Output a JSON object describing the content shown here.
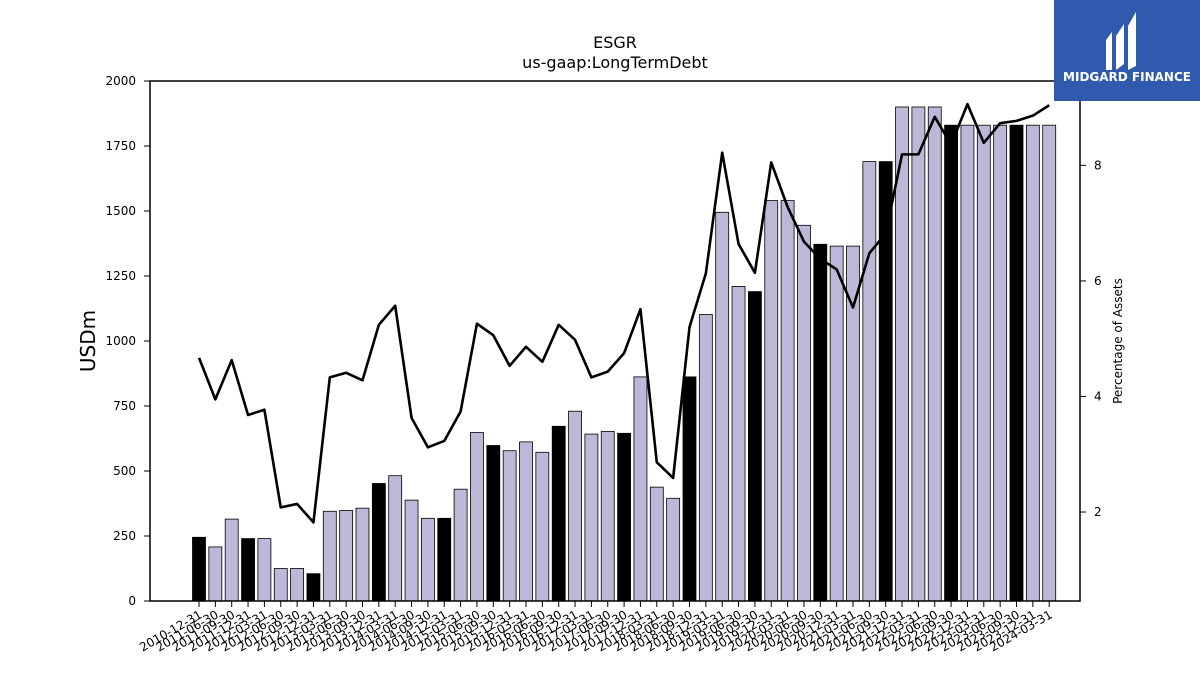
{
  "colors": {
    "bar_highlight": "#000000",
    "bar_normal": "#bcb8d8",
    "bar_edge": "#000000",
    "line": "#000000",
    "logo_bg": "#2f5aad"
  },
  "logo": {
    "text": "MIDGARD FINANCE",
    "icon": "midgard-logo-icon"
  },
  "chart_data": {
    "type": "bar",
    "title": "ESGR",
    "subtitle": "us-gaap:LongTermDebt",
    "ylabel": "USDm",
    "y2label": "Percentage of Assets",
    "ylim": [
      0,
      2000
    ],
    "y2lim": [
      0.46,
      9.46
    ],
    "yticks": [
      0,
      250,
      500,
      750,
      1000,
      1250,
      1500,
      1750,
      2000
    ],
    "y2ticks": [
      2,
      4,
      6,
      8
    ],
    "grid": false,
    "categories": [
      "2010-12-31",
      "2011-06-30",
      "2011-09-30",
      "2011-12-31",
      "2012-03-31",
      "2012-06-30",
      "2012-09-30",
      "2012-12-31",
      "2013-03-31",
      "2013-06-30",
      "2013-09-30",
      "2013-12-31",
      "2014-03-31",
      "2014-06-30",
      "2014-09-30",
      "2014-12-31",
      "2015-03-31",
      "2015-06-30",
      "2015-09-30",
      "2015-12-31",
      "2016-03-31",
      "2016-06-30",
      "2016-09-30",
      "2016-12-31",
      "2017-03-31",
      "2017-06-30",
      "2017-09-30",
      "2017-12-31",
      "2018-03-31",
      "2018-06-30",
      "2018-09-30",
      "2018-12-31",
      "2019-03-31",
      "2019-06-30",
      "2019-09-30",
      "2019-12-31",
      "2020-03-31",
      "2020-06-30",
      "2020-09-30",
      "2020-12-31",
      "2021-03-31",
      "2021-06-30",
      "2021-09-30",
      "2021-12-31",
      "2022-03-31",
      "2022-06-30",
      "2022-09-30",
      "2022-12-31",
      "2023-03-31",
      "2023-06-30",
      "2023-09-30",
      "2023-12-31",
      "2024-03-31"
    ],
    "highlight": [
      true,
      false,
      false,
      true,
      false,
      false,
      false,
      true,
      false,
      false,
      false,
      true,
      false,
      false,
      false,
      true,
      false,
      false,
      true,
      false,
      false,
      false,
      true,
      false,
      false,
      false,
      true,
      false,
      false,
      false,
      true,
      false,
      false,
      false,
      true,
      false,
      false,
      false,
      true,
      false,
      false,
      false,
      true,
      false,
      false,
      false,
      true,
      false,
      false,
      false,
      true,
      false,
      false
    ],
    "series": [
      {
        "name": "LongTermDebt (USDm)",
        "values": [
          245,
          208,
          315,
          240,
          240,
          125,
          125,
          105,
          345,
          348,
          357,
          452,
          482,
          388,
          318,
          318,
          430,
          648,
          598,
          578,
          612,
          572,
          672,
          730,
          642,
          652,
          645,
          862,
          438,
          395,
          862,
          1102,
          1495,
          1210,
          1190,
          1540,
          1540,
          1445,
          1372,
          1365,
          1365,
          1690,
          1690,
          1900,
          1900,
          1900,
          1830,
          1830,
          1830,
          1830,
          1830,
          1830,
          1830
        ]
      },
      {
        "name": "Percentage of Assets",
        "axis": "right",
        "values": [
          4.67,
          3.95,
          4.63,
          3.68,
          3.77,
          2.08,
          2.14,
          1.82,
          4.33,
          4.41,
          4.28,
          5.24,
          5.57,
          3.63,
          3.12,
          3.23,
          3.74,
          5.26,
          5.06,
          4.53,
          4.86,
          4.6,
          5.24,
          4.98,
          4.33,
          4.43,
          4.75,
          5.51,
          2.86,
          2.59,
          5.2,
          6.13,
          8.22,
          6.64,
          6.14,
          8.05,
          7.28,
          6.68,
          6.38,
          6.2,
          5.54,
          6.48,
          6.82,
          8.19,
          8.19,
          8.84,
          8.36,
          9.06,
          8.39,
          8.73,
          8.77,
          8.86,
          9.04
        ]
      }
    ]
  }
}
